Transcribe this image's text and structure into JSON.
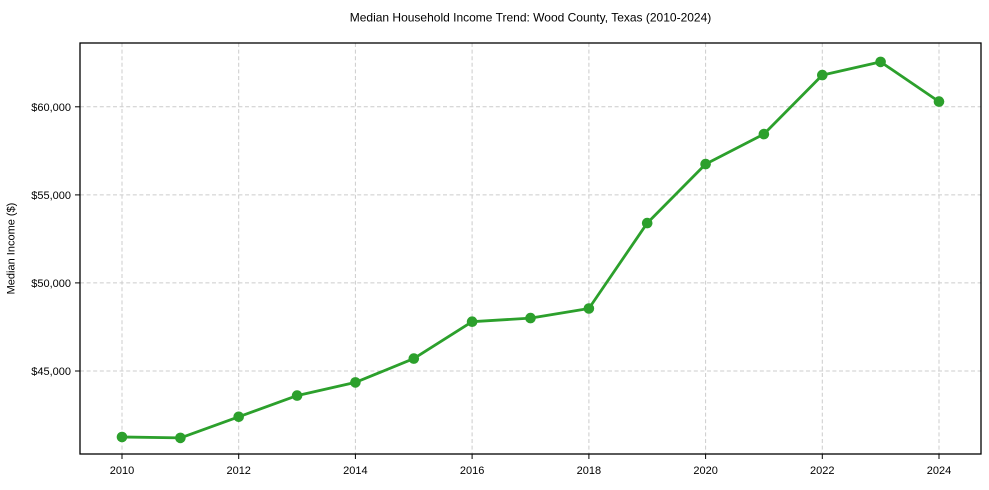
{
  "chart_data": {
    "type": "line",
    "title": "Median Household Income Trend: Wood County, Texas (2010-2024)",
    "xlabel": "",
    "ylabel": "Median Income ($)",
    "x": [
      2010,
      2011,
      2012,
      2013,
      2014,
      2015,
      2016,
      2017,
      2018,
      2019,
      2020,
      2021,
      2022,
      2023,
      2024
    ],
    "y": [
      41250,
      41200,
      42400,
      43600,
      44350,
      45700,
      47800,
      48000,
      48550,
      53400,
      56750,
      58450,
      61800,
      62550,
      60300
    ],
    "x_ticks": [
      2010,
      2012,
      2014,
      2016,
      2018,
      2020,
      2022,
      2024
    ],
    "x_tick_labels": [
      "2010",
      "2012",
      "2014",
      "2016",
      "2018",
      "2020",
      "2022",
      "2024"
    ],
    "y_ticks": [
      45000,
      50000,
      55000,
      60000
    ],
    "y_tick_labels": [
      "$45,000",
      "$50,000",
      "$55,000",
      "$60,000"
    ],
    "xlim": [
      2009.28,
      2024.72
    ],
    "ylim": [
      40285,
      63625
    ],
    "grid": true,
    "legend": "none",
    "line_color": "#2ca02c",
    "marker": "circle",
    "grid_color": "#cccccc",
    "spine_color": "#000000",
    "background_color": "#ffffff"
  }
}
